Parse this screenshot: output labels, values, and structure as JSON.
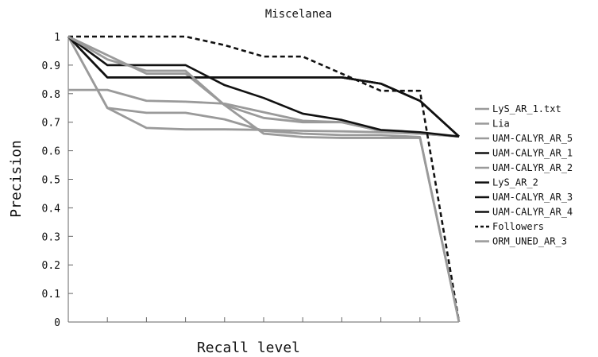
{
  "chart_data": {
    "type": "line",
    "title": "Miscelanea",
    "xlabel": "Recall level",
    "ylabel": "Precision",
    "x": [
      0,
      0.1,
      0.2,
      0.3,
      0.4,
      0.5,
      0.6,
      0.7,
      0.8,
      0.9,
      1.0
    ],
    "xlim": [
      0,
      1
    ],
    "ylim": [
      0,
      1
    ],
    "y_ticks": [
      "0",
      "0.1",
      "0.2",
      "0.3",
      "0.4",
      "0.5",
      "0.6",
      "0.7",
      "0.8",
      "0.9",
      "1"
    ],
    "grid": false,
    "legend_position": "right",
    "colors": {
      "dark": "#111111",
      "gray": "#9a9a9a"
    },
    "series": [
      {
        "name": "LyS_AR_1.txt",
        "color": "#9a9a9a",
        "style": "solid",
        "values": [
          0.813,
          0.813,
          0.775,
          0.772,
          0.765,
          0.735,
          0.705,
          0.7,
          0.67,
          0.66,
          0.65
        ]
      },
      {
        "name": "Lia",
        "color": "#9a9a9a",
        "style": "solid",
        "values": [
          1.0,
          0.935,
          0.87,
          0.87,
          0.76,
          0.715,
          0.7,
          0.7,
          0.67,
          0.66,
          0.65
        ]
      },
      {
        "name": "UAM-CALYR_AR_5",
        "color": "#9a9a9a",
        "style": "solid",
        "values": [
          1.0,
          0.75,
          0.68,
          0.675,
          0.675,
          0.673,
          0.67,
          0.668,
          0.665,
          0.66,
          0.65
        ]
      },
      {
        "name": "UAM-CALYR_AR_1",
        "color": "#111111",
        "style": "solid",
        "values": [
          1.0,
          0.857,
          0.857,
          0.857,
          0.857,
          0.857,
          0.857,
          0.857,
          0.835,
          0.775,
          0.65
        ]
      },
      {
        "name": "UAM-CALYR_AR_2",
        "color": "#9a9a9a",
        "style": "solid",
        "values": [
          1.0,
          0.75,
          0.733,
          0.733,
          0.71,
          0.67,
          0.66,
          0.655,
          0.655,
          0.648,
          0.0
        ]
      },
      {
        "name": "LyS_AR_2",
        "color": "#111111",
        "style": "solid",
        "values": [
          1.0,
          0.9,
          0.9,
          0.9,
          0.83,
          0.785,
          0.73,
          0.708,
          0.673,
          0.665,
          0.65
        ]
      },
      {
        "name": "UAM-CALYR_AR_3",
        "color": "#111111",
        "style": "solid",
        "values": [
          1.0,
          0.857,
          0.857,
          0.857,
          0.857,
          0.857,
          0.857,
          0.857,
          0.835,
          0.775,
          0.65
        ]
      },
      {
        "name": "UAM-CALYR_AR_4",
        "color": "#111111",
        "style": "solid",
        "values": [
          1.0,
          0.857,
          0.857,
          0.857,
          0.857,
          0.857,
          0.857,
          0.857,
          0.835,
          0.775,
          0.65
        ]
      },
      {
        "name": "Followers",
        "color": "#111111",
        "style": "dashed",
        "values": [
          1.0,
          1.0,
          1.0,
          1.0,
          0.97,
          0.93,
          0.93,
          0.87,
          0.81,
          0.81,
          0.0
        ]
      },
      {
        "name": "ORM_UNED_AR_3",
        "color": "#9a9a9a",
        "style": "solid",
        "values": [
          1.0,
          0.92,
          0.88,
          0.88,
          0.76,
          0.66,
          0.648,
          0.645,
          0.645,
          0.645,
          0.0
        ]
      }
    ]
  }
}
